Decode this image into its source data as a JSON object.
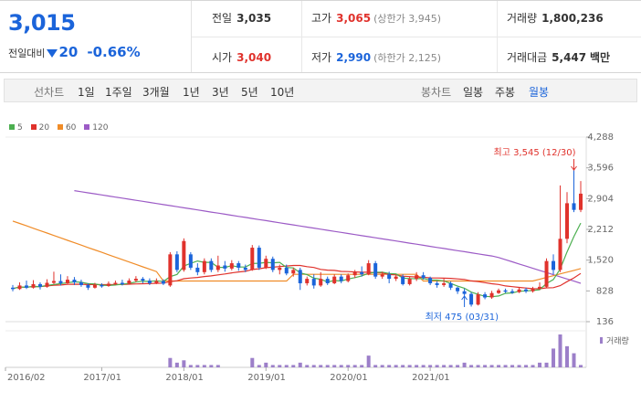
{
  "quote": {
    "price": "3,015",
    "change_label": "전일대비",
    "change": "20",
    "rate": "-0.66%"
  },
  "info": {
    "prev_label": "전일",
    "prev": "3,035",
    "open_label": "시가",
    "open": "3,040",
    "high_label": "고가",
    "high": "3,065",
    "upper_label": "(상한가 3,945)",
    "low_label": "저가",
    "low": "2,990",
    "lower_label": "(하한가 2,125)",
    "volume_label": "거래량",
    "volume": "1,800,236",
    "amount_label": "거래대금",
    "amount": "5,447",
    "amount_unit": "백만"
  },
  "toolbar": {
    "line_label": "선차트",
    "periods": [
      "1일",
      "1주일",
      "3개월",
      "1년",
      "3년",
      "5년",
      "10년"
    ],
    "candle_label": "봉차트",
    "candles": [
      "일봉",
      "주봉",
      "월봉"
    ],
    "active_candle": "월봉"
  },
  "colors": {
    "up": "#e0322c",
    "down": "#1b64da",
    "ma5": "#4caf50",
    "ma20": "#e0322c",
    "ma60": "#f08c28",
    "ma120": "#9c5bc6",
    "volume": "#9c7fc9"
  },
  "chart_data": {
    "type": "candlestick",
    "legend": [
      "5",
      "20",
      "60",
      "120"
    ],
    "y_ticks": [
      "4,288",
      "3,596",
      "2,904",
      "2,212",
      "1,520",
      "828",
      "136"
    ],
    "ylim": [
      136,
      4288
    ],
    "x_ticks": [
      "2016/02",
      "2017/01",
      "2018/01",
      "2019/01",
      "2020/01",
      "2021/01"
    ],
    "high_annotation": "최고 3,545 (12/30)",
    "low_annotation": "최저 475 (03/31)",
    "volume_label": "거래량",
    "candles": [
      {
        "o": 900,
        "c": 880,
        "h": 960,
        "l": 820
      },
      {
        "o": 870,
        "c": 950,
        "h": 1020,
        "l": 850
      },
      {
        "o": 950,
        "c": 900,
        "h": 1060,
        "l": 870
      },
      {
        "o": 900,
        "c": 980,
        "h": 1070,
        "l": 880
      },
      {
        "o": 980,
        "c": 920,
        "h": 1020,
        "l": 860
      },
      {
        "o": 920,
        "c": 1010,
        "h": 1090,
        "l": 900
      },
      {
        "o": 1010,
        "c": 1050,
        "h": 1260,
        "l": 980
      },
      {
        "o": 1050,
        "c": 1000,
        "h": 1200,
        "l": 950
      },
      {
        "o": 1000,
        "c": 1080,
        "h": 1160,
        "l": 980
      },
      {
        "o": 1080,
        "c": 1020,
        "h": 1140,
        "l": 960
      },
      {
        "o": 1020,
        "c": 960,
        "h": 1080,
        "l": 920
      },
      {
        "o": 960,
        "c": 900,
        "h": 1000,
        "l": 850
      },
      {
        "o": 900,
        "c": 960,
        "h": 1010,
        "l": 880
      },
      {
        "o": 960,
        "c": 940,
        "h": 1000,
        "l": 900
      },
      {
        "o": 940,
        "c": 990,
        "h": 1040,
        "l": 920
      },
      {
        "o": 990,
        "c": 1010,
        "h": 1060,
        "l": 960
      },
      {
        "o": 1010,
        "c": 990,
        "h": 1080,
        "l": 950
      },
      {
        "o": 990,
        "c": 1060,
        "h": 1110,
        "l": 970
      },
      {
        "o": 1060,
        "c": 1100,
        "h": 1160,
        "l": 1020
      },
      {
        "o": 1100,
        "c": 1060,
        "h": 1140,
        "l": 1000
      },
      {
        "o": 1060,
        "c": 1000,
        "h": 1110,
        "l": 960
      },
      {
        "o": 1000,
        "c": 1050,
        "h": 1110,
        "l": 980
      },
      {
        "o": 1050,
        "c": 990,
        "h": 1090,
        "l": 960
      },
      {
        "o": 950,
        "c": 1650,
        "h": 1700,
        "l": 920
      },
      {
        "o": 1650,
        "c": 1300,
        "h": 1720,
        "l": 1250
      },
      {
        "o": 1300,
        "c": 1950,
        "h": 2010,
        "l": 1260
      },
      {
        "o": 1650,
        "c": 1350,
        "h": 1700,
        "l": 1300
      },
      {
        "o": 1350,
        "c": 1250,
        "h": 1450,
        "l": 1180
      },
      {
        "o": 1250,
        "c": 1500,
        "h": 1560,
        "l": 1200
      },
      {
        "o": 1500,
        "c": 1300,
        "h": 1560,
        "l": 1250
      },
      {
        "o": 1300,
        "c": 1400,
        "h": 1620,
        "l": 1250
      },
      {
        "o": 1400,
        "c": 1330,
        "h": 1500,
        "l": 1260
      },
      {
        "o": 1330,
        "c": 1450,
        "h": 1520,
        "l": 1290
      },
      {
        "o": 1450,
        "c": 1350,
        "h": 1500,
        "l": 1280
      },
      {
        "o": 1350,
        "c": 1300,
        "h": 1420,
        "l": 1250
      },
      {
        "o": 1300,
        "c": 1800,
        "h": 1860,
        "l": 1280
      },
      {
        "o": 1800,
        "c": 1350,
        "h": 1850,
        "l": 1300
      },
      {
        "o": 1350,
        "c": 1550,
        "h": 1620,
        "l": 1320
      },
      {
        "o": 1550,
        "c": 1300,
        "h": 1600,
        "l": 1250
      },
      {
        "o": 1300,
        "c": 1350,
        "h": 1420,
        "l": 1200
      },
      {
        "o": 1350,
        "c": 1220,
        "h": 1420,
        "l": 1180
      },
      {
        "o": 1220,
        "c": 1300,
        "h": 1350,
        "l": 1150
      },
      {
        "o": 1300,
        "c": 1000,
        "h": 1350,
        "l": 850
      },
      {
        "o": 1000,
        "c": 1100,
        "h": 1150,
        "l": 950
      },
      {
        "o": 1100,
        "c": 950,
        "h": 1200,
        "l": 880
      },
      {
        "o": 950,
        "c": 1100,
        "h": 1250,
        "l": 920
      },
      {
        "o": 1100,
        "c": 1000,
        "h": 1150,
        "l": 960
      },
      {
        "o": 1000,
        "c": 1150,
        "h": 1200,
        "l": 980
      },
      {
        "o": 1150,
        "c": 1050,
        "h": 1200,
        "l": 1000
      },
      {
        "o": 1050,
        "c": 1180,
        "h": 1220,
        "l": 1020
      },
      {
        "o": 1180,
        "c": 1250,
        "h": 1300,
        "l": 1120
      },
      {
        "o": 1250,
        "c": 1200,
        "h": 1380,
        "l": 1150
      },
      {
        "o": 1200,
        "c": 1450,
        "h": 1520,
        "l": 1180
      },
      {
        "o": 1450,
        "c": 1150,
        "h": 1500,
        "l": 1100
      },
      {
        "o": 1150,
        "c": 1200,
        "h": 1260,
        "l": 1100
      },
      {
        "o": 1200,
        "c": 1100,
        "h": 1260,
        "l": 1000
      },
      {
        "o": 1100,
        "c": 1150,
        "h": 1180,
        "l": 1050
      },
      {
        "o": 1150,
        "c": 980,
        "h": 1200,
        "l": 950
      },
      {
        "o": 980,
        "c": 1100,
        "h": 1150,
        "l": 950
      },
      {
        "o": 1100,
        "c": 1180,
        "h": 1250,
        "l": 1050
      },
      {
        "o": 1180,
        "c": 1120,
        "h": 1250,
        "l": 1080
      },
      {
        "o": 1120,
        "c": 1000,
        "h": 1150,
        "l": 960
      },
      {
        "o": 1000,
        "c": 960,
        "h": 1050,
        "l": 900
      },
      {
        "o": 960,
        "c": 1000,
        "h": 1100,
        "l": 920
      },
      {
        "o": 1000,
        "c": 900,
        "h": 1040,
        "l": 850
      },
      {
        "o": 900,
        "c": 820,
        "h": 920,
        "l": 760
      },
      {
        "o": 820,
        "c": 760,
        "h": 880,
        "l": 720
      },
      {
        "o": 760,
        "c": 520,
        "h": 800,
        "l": 475
      },
      {
        "o": 520,
        "c": 750,
        "h": 800,
        "l": 500
      },
      {
        "o": 750,
        "c": 680,
        "h": 800,
        "l": 640
      },
      {
        "o": 680,
        "c": 780,
        "h": 830,
        "l": 650
      },
      {
        "o": 780,
        "c": 840,
        "h": 880,
        "l": 760
      },
      {
        "o": 840,
        "c": 820,
        "h": 880,
        "l": 780
      },
      {
        "o": 820,
        "c": 800,
        "h": 870,
        "l": 760
      },
      {
        "o": 800,
        "c": 860,
        "h": 900,
        "l": 780
      },
      {
        "o": 860,
        "c": 820,
        "h": 900,
        "l": 780
      },
      {
        "o": 820,
        "c": 880,
        "h": 920,
        "l": 790
      },
      {
        "o": 880,
        "c": 920,
        "h": 1020,
        "l": 850
      },
      {
        "o": 920,
        "c": 1500,
        "h": 1560,
        "l": 900
      },
      {
        "o": 1500,
        "c": 1300,
        "h": 1650,
        "l": 1200
      },
      {
        "o": 1300,
        "c": 2000,
        "h": 3200,
        "l": 1250
      },
      {
        "o": 2000,
        "c": 2800,
        "h": 3050,
        "l": 1900
      },
      {
        "o": 2800,
        "c": 2650,
        "h": 3545,
        "l": 2600
      },
      {
        "o": 2650,
        "c": 3015,
        "h": 3300,
        "l": 2600
      }
    ],
    "volume": [
      0,
      0,
      0,
      0,
      0,
      0,
      0,
      0,
      0,
      0,
      0,
      0,
      0,
      0,
      0,
      0,
      0,
      0,
      0,
      0,
      0,
      0,
      0,
      4,
      2,
      3,
      1,
      1,
      1,
      1,
      1,
      0,
      0,
      0,
      0,
      4,
      1,
      2,
      1,
      1,
      1,
      1,
      2,
      1,
      1,
      1,
      1,
      1,
      1,
      1,
      1,
      1,
      5,
      1,
      1,
      1,
      1,
      1,
      1,
      1,
      1,
      1,
      1,
      1,
      1,
      1,
      2,
      1,
      1,
      1,
      1,
      1,
      1,
      1,
      1,
      1,
      1,
      2,
      2,
      8,
      14,
      9,
      6,
      1
    ]
  }
}
